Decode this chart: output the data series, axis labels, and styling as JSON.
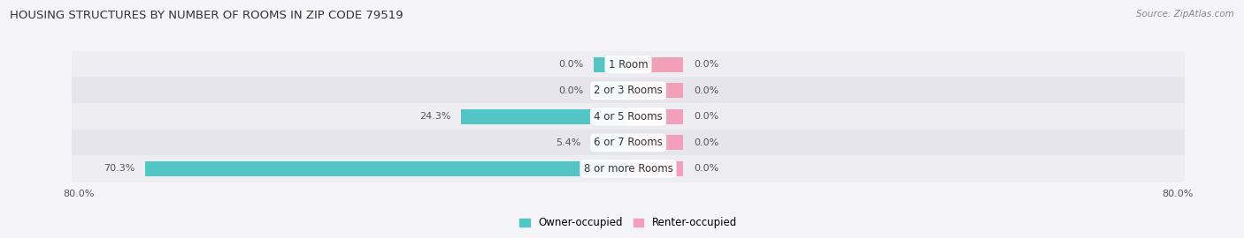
{
  "title": "HOUSING STRUCTURES BY NUMBER OF ROOMS IN ZIP CODE 79519",
  "source": "Source: ZipAtlas.com",
  "categories": [
    "1 Room",
    "2 or 3 Rooms",
    "4 or 5 Rooms",
    "6 or 7 Rooms",
    "8 or more Rooms"
  ],
  "owner_values": [
    0.0,
    0.0,
    24.3,
    5.4,
    70.3
  ],
  "renter_values": [
    0.0,
    0.0,
    0.0,
    0.0,
    0.0
  ],
  "owner_color": "#52C5C5",
  "renter_color": "#F2A0BA",
  "row_bg_even": "#EEEEF2",
  "row_bg_odd": "#E5E5EB",
  "fig_bg": "#F5F5F8",
  "label_color": "#555555",
  "title_color": "#333333",
  "axis_min": -80.0,
  "axis_max": 80.0,
  "stub_size": 5.0,
  "renter_stub_size": 8.0,
  "bar_height": 0.58,
  "figsize": [
    14.06,
    2.7
  ],
  "dpi": 100,
  "legend_owner": "Owner-occupied",
  "legend_renter": "Renter-occupied"
}
